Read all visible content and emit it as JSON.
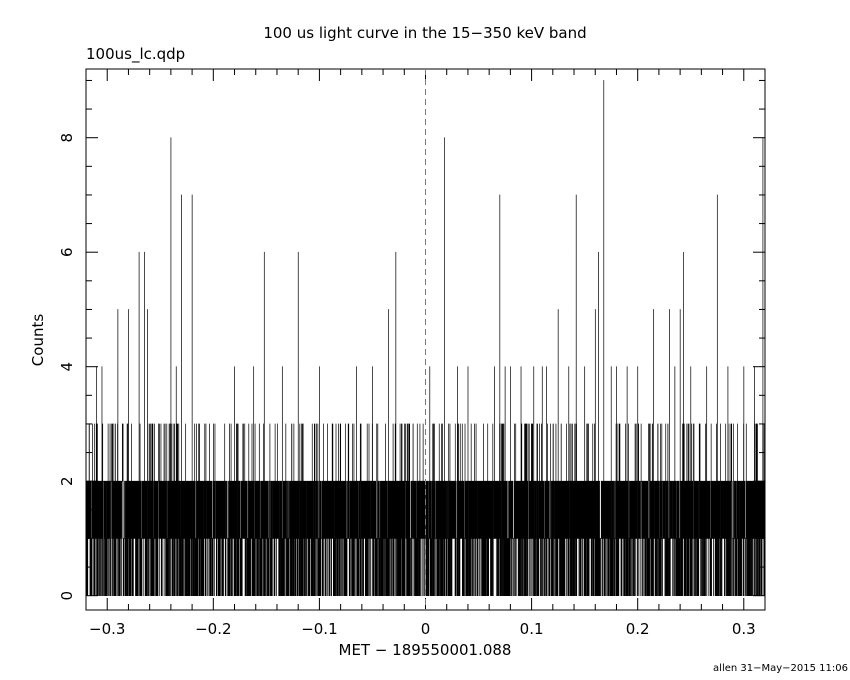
{
  "chart_data": {
    "type": "histogram",
    "title": "100 us light curve in the 15−350 keV band",
    "filename": "100us_lc.qdp",
    "xlabel": "MET − 189550001.088",
    "ylabel": "Counts",
    "footer": "allen 31−May−2015 11:06",
    "xlim": [
      -0.32,
      0.32
    ],
    "ylim": [
      -0.25,
      9.2
    ],
    "bin_width": 0.0001,
    "x_ticks": [
      -0.3,
      -0.2,
      -0.1,
      0,
      0.1,
      0.2,
      0.3
    ],
    "x_tick_labels": [
      "−0.3",
      "−0.2",
      "−0.1",
      "0",
      "0.1",
      "0.2",
      "0.3"
    ],
    "y_ticks": [
      0,
      2,
      4,
      6,
      8
    ],
    "y_tick_labels": [
      "0",
      "2",
      "4",
      "6",
      "8"
    ],
    "reference_line": {
      "x": 0,
      "style": "dashed",
      "color": "#1a9ad0"
    },
    "line_color": "#000000",
    "baseline_counts_range": [
      0,
      2
    ],
    "peaks": [
      {
        "x": -0.31,
        "y": 4
      },
      {
        "x": -0.305,
        "y": 4
      },
      {
        "x": -0.29,
        "y": 5
      },
      {
        "x": -0.28,
        "y": 5
      },
      {
        "x": -0.27,
        "y": 6
      },
      {
        "x": -0.265,
        "y": 6
      },
      {
        "x": -0.262,
        "y": 5
      },
      {
        "x": -0.24,
        "y": 8
      },
      {
        "x": -0.235,
        "y": 4
      },
      {
        "x": -0.23,
        "y": 7
      },
      {
        "x": -0.22,
        "y": 7
      },
      {
        "x": -0.2,
        "y": 3
      },
      {
        "x": -0.18,
        "y": 4
      },
      {
        "x": -0.162,
        "y": 4
      },
      {
        "x": -0.152,
        "y": 6
      },
      {
        "x": -0.135,
        "y": 4
      },
      {
        "x": -0.12,
        "y": 6
      },
      {
        "x": -0.1,
        "y": 4
      },
      {
        "x": -0.08,
        "y": 3
      },
      {
        "x": -0.065,
        "y": 4
      },
      {
        "x": -0.05,
        "y": 4
      },
      {
        "x": -0.045,
        "y": 3
      },
      {
        "x": -0.035,
        "y": 5
      },
      {
        "x": -0.028,
        "y": 6
      },
      {
        "x": -0.015,
        "y": 3
      },
      {
        "x": 0.004,
        "y": 4
      },
      {
        "x": 0.018,
        "y": 8
      },
      {
        "x": 0.03,
        "y": 4
      },
      {
        "x": 0.04,
        "y": 4
      },
      {
        "x": 0.065,
        "y": 4
      },
      {
        "x": 0.07,
        "y": 7
      },
      {
        "x": 0.075,
        "y": 4
      },
      {
        "x": 0.08,
        "y": 4
      },
      {
        "x": 0.09,
        "y": 4
      },
      {
        "x": 0.095,
        "y": 3
      },
      {
        "x": 0.102,
        "y": 4
      },
      {
        "x": 0.11,
        "y": 4
      },
      {
        "x": 0.114,
        "y": 4
      },
      {
        "x": 0.125,
        "y": 5
      },
      {
        "x": 0.135,
        "y": 4
      },
      {
        "x": 0.142,
        "y": 7
      },
      {
        "x": 0.15,
        "y": 4
      },
      {
        "x": 0.16,
        "y": 5
      },
      {
        "x": 0.163,
        "y": 6
      },
      {
        "x": 0.168,
        "y": 9
      },
      {
        "x": 0.175,
        "y": 4
      },
      {
        "x": 0.18,
        "y": 4
      },
      {
        "x": 0.19,
        "y": 4
      },
      {
        "x": 0.2,
        "y": 4
      },
      {
        "x": 0.21,
        "y": 3
      },
      {
        "x": 0.215,
        "y": 5
      },
      {
        "x": 0.23,
        "y": 5
      },
      {
        "x": 0.235,
        "y": 4
      },
      {
        "x": 0.24,
        "y": 5
      },
      {
        "x": 0.243,
        "y": 6
      },
      {
        "x": 0.25,
        "y": 4
      },
      {
        "x": 0.265,
        "y": 4
      },
      {
        "x": 0.275,
        "y": 7
      },
      {
        "x": 0.285,
        "y": 4
      },
      {
        "x": 0.3,
        "y": 4
      },
      {
        "x": 0.31,
        "y": 4
      },
      {
        "x": 0.318,
        "y": 8
      }
    ]
  }
}
